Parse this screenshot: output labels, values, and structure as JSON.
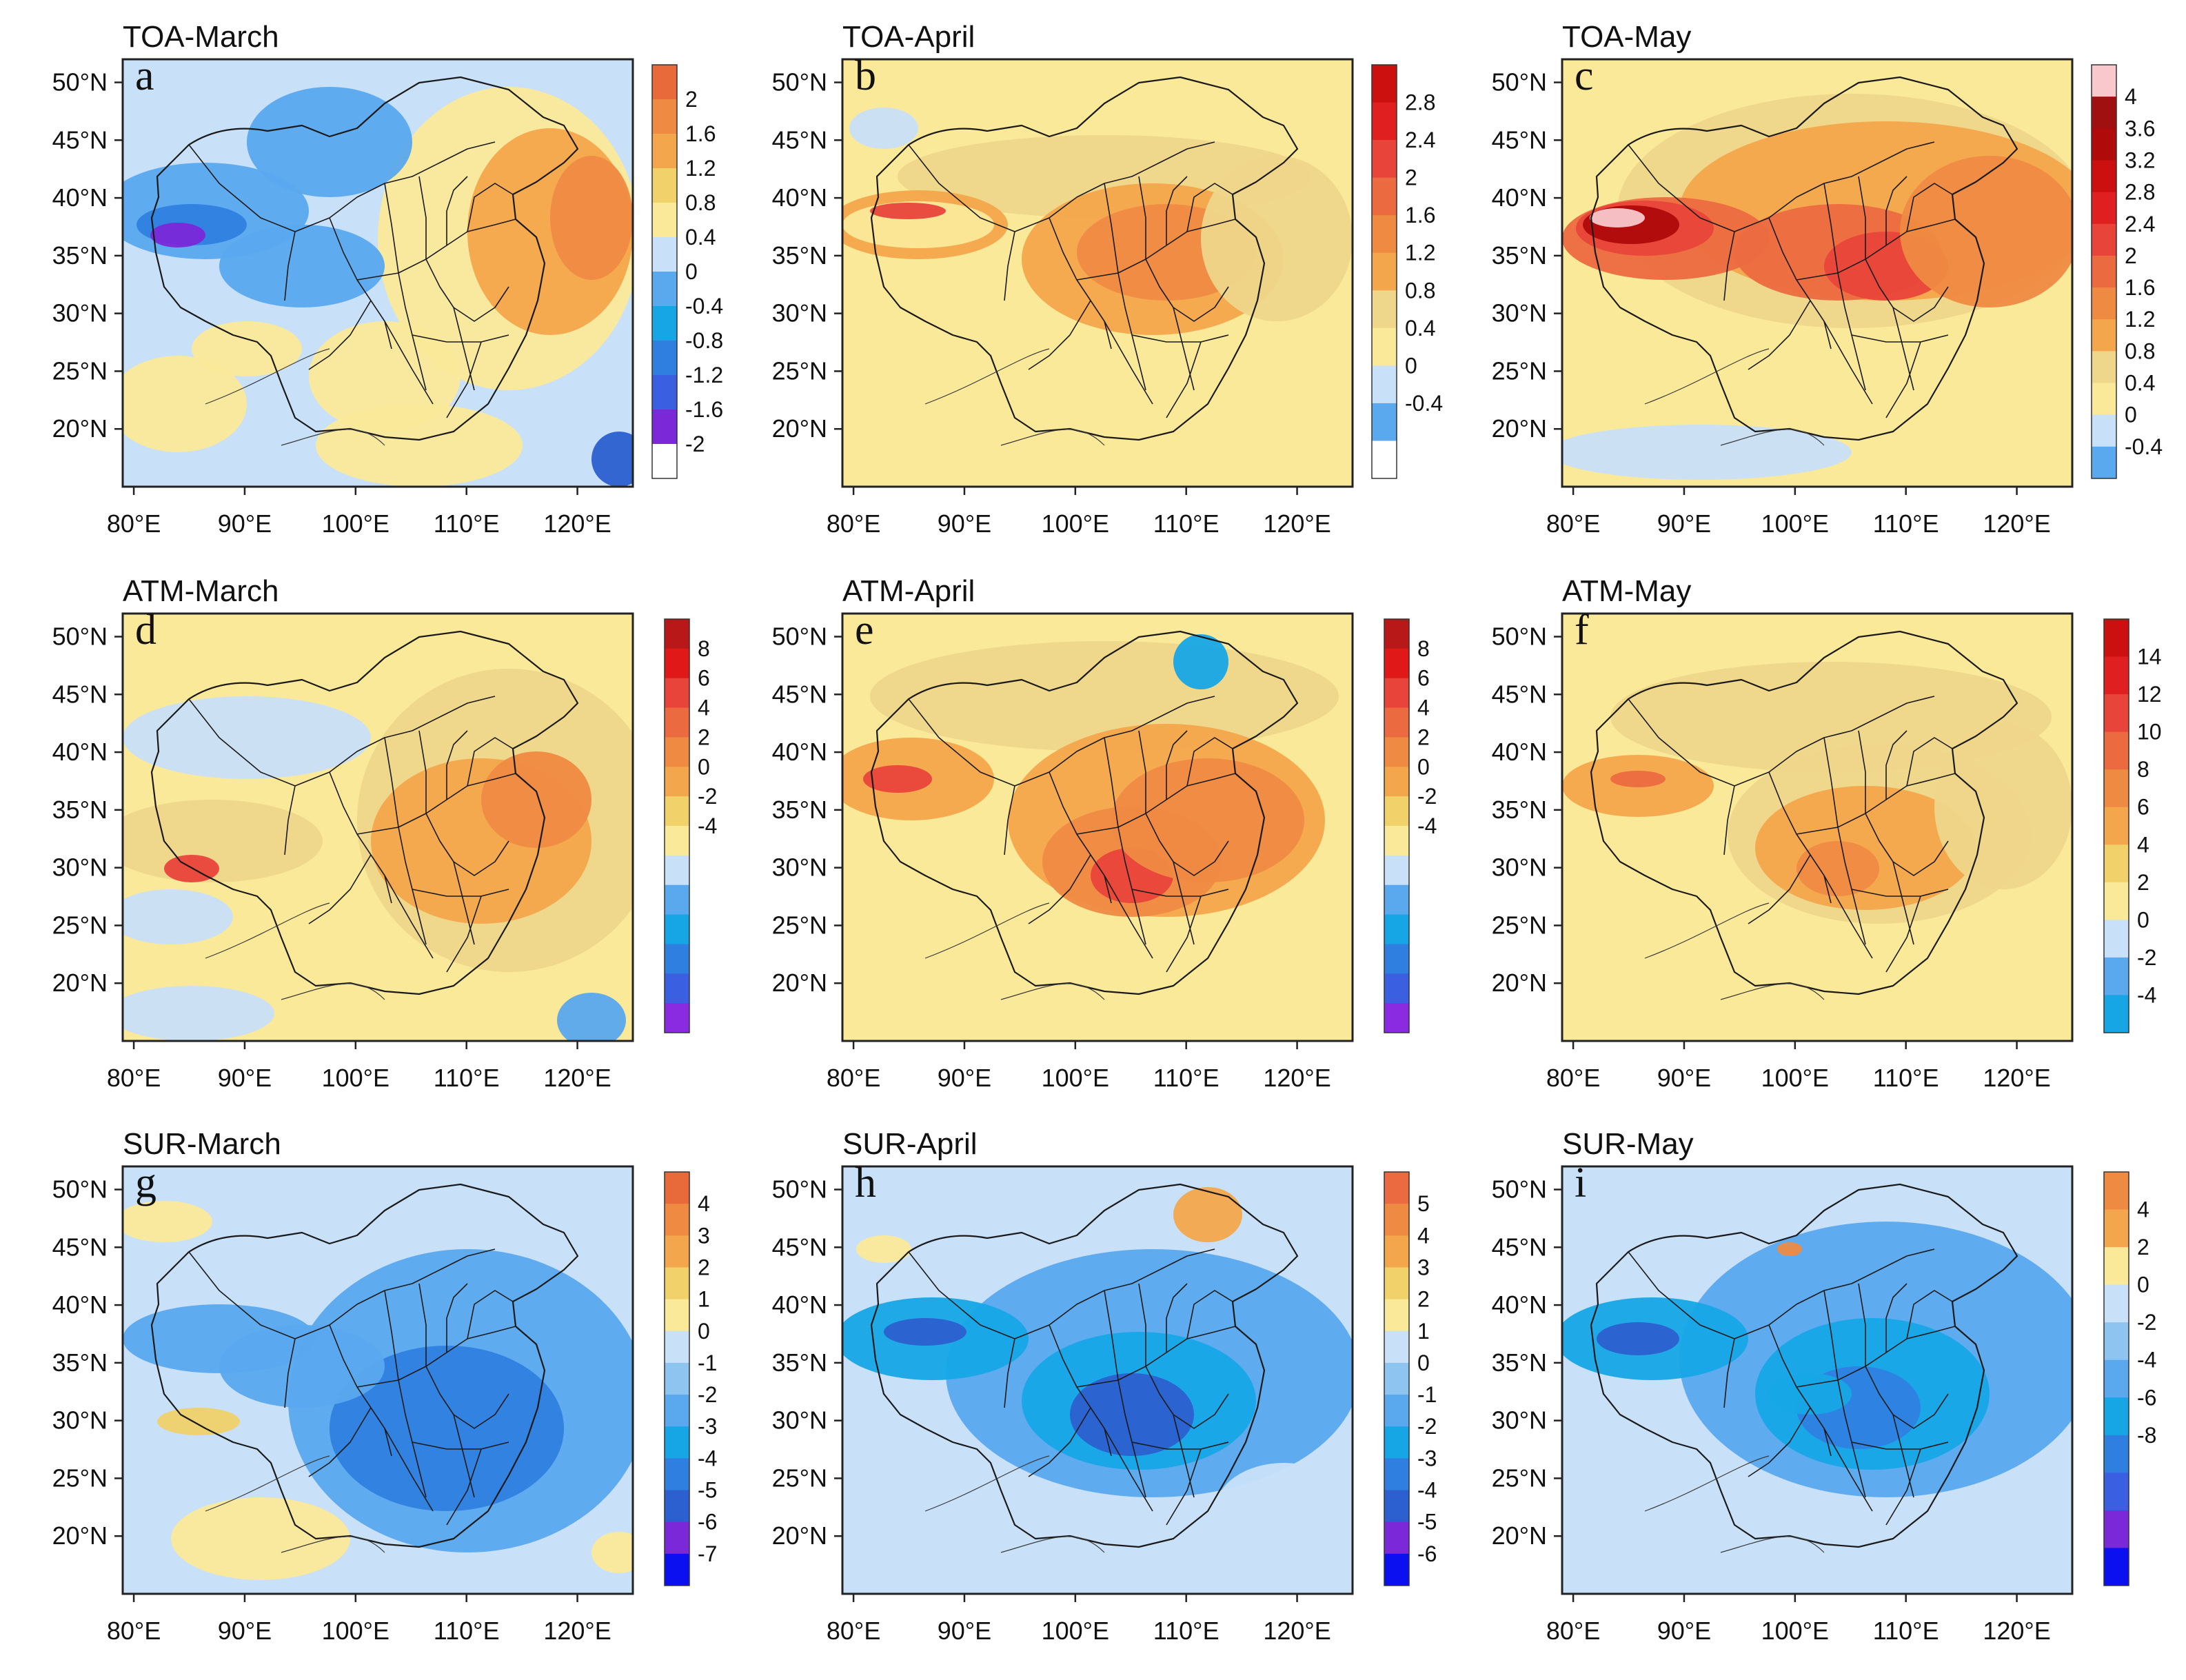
{
  "chart_data": [
    {
      "id": "a",
      "title": "TOA-March",
      "letter": "a",
      "type": "heatmap",
      "scheme": "toa",
      "colorbar": {
        "colors": [
          "#ffffff",
          "#7a28d8",
          "#3a5fe0",
          "#2f7fe0",
          "#16a6e6",
          "#5aa8ee",
          "#c8e0f8",
          "#fbe99a",
          "#f0d16a",
          "#f4a64c",
          "#ef8a42",
          "#e86a3a"
        ],
        "labels": [
          "2",
          "1.6",
          "1.2",
          "0.8",
          "0.4",
          "0",
          "-0.4",
          "-0.8",
          "-1.2",
          "-1.6",
          "-2"
        ]
      }
    },
    {
      "id": "b",
      "title": "TOA-April",
      "letter": "b",
      "type": "heatmap",
      "scheme": "toa_b",
      "colorbar": {
        "colors": [
          "#ffffff",
          "#5aa8ee",
          "#c8e0f8",
          "#fbe99a",
          "#eed68a",
          "#f4a64c",
          "#ef8a42",
          "#ec6a40",
          "#e8443a",
          "#e02020",
          "#cc1010"
        ],
        "labels": [
          "2.8",
          "2.4",
          "2",
          "1.6",
          "1.2",
          "0.8",
          "0.4",
          "0",
          "-0.4"
        ]
      }
    },
    {
      "id": "c",
      "title": "TOA-May",
      "letter": "c",
      "type": "heatmap",
      "scheme": "toa_c",
      "colorbar": {
        "colors": [
          "#5aa8ee",
          "#c8e0f8",
          "#fbe99a",
          "#eed68a",
          "#f4a64c",
          "#ef8a42",
          "#ec6a40",
          "#e8443a",
          "#e02020",
          "#cc1010",
          "#b00a0a",
          "#a01010",
          "#f8c8cc"
        ],
        "labels": [
          "4",
          "3.6",
          "3.2",
          "2.8",
          "2.4",
          "2",
          "1.6",
          "1.2",
          "0.8",
          "0.4",
          "0",
          "-0.4"
        ]
      }
    },
    {
      "id": "d",
      "title": "ATM-March",
      "letter": "d",
      "type": "heatmap",
      "scheme": "atm",
      "colorbar": {
        "colors": [
          "#8a2be2",
          "#3a5fe0",
          "#2f7fe0",
          "#16a6e6",
          "#5aa8ee",
          "#c8e0f8",
          "#fbe99a",
          "#f0d16a",
          "#f4a64c",
          "#ef8a42",
          "#ec6a40",
          "#e8443a",
          "#e01818",
          "#b81818"
        ],
        "labels": [
          "8",
          "6",
          "4",
          "2",
          "0",
          "-2",
          "-4"
        ]
      }
    },
    {
      "id": "e",
      "title": "ATM-April",
      "letter": "e",
      "type": "heatmap",
      "scheme": "atm_e",
      "colorbar": {
        "colors": [
          "#8a2be2",
          "#3a5fe0",
          "#2f7fe0",
          "#16a6e6",
          "#5aa8ee",
          "#c8e0f8",
          "#fbe99a",
          "#f0d16a",
          "#f4a64c",
          "#ef8a42",
          "#ec6a40",
          "#e8443a",
          "#e01818",
          "#b81818"
        ],
        "labels": [
          "8",
          "6",
          "4",
          "2",
          "0",
          "-2",
          "-4"
        ]
      }
    },
    {
      "id": "f",
      "title": "ATM-May",
      "letter": "f",
      "type": "heatmap",
      "scheme": "atm_f",
      "colorbar": {
        "colors": [
          "#16a6e6",
          "#5aa8ee",
          "#c8e0f8",
          "#fbe99a",
          "#f0d16a",
          "#f4a64c",
          "#ef8a42",
          "#ec6a40",
          "#e8443a",
          "#e02020",
          "#cc1010"
        ],
        "labels": [
          "14",
          "12",
          "10",
          "8",
          "6",
          "4",
          "2",
          "0",
          "-2",
          "-4"
        ]
      }
    },
    {
      "id": "g",
      "title": "SUR-March",
      "letter": "g",
      "type": "heatmap",
      "scheme": "sur",
      "colorbar": {
        "colors": [
          "#0a10f0",
          "#7a28d8",
          "#2c5fd0",
          "#2f7fe0",
          "#16a6e6",
          "#5aa8ee",
          "#8ec4f0",
          "#c8e0f8",
          "#fbe99a",
          "#f0d16a",
          "#f4a64c",
          "#ef8a42",
          "#e86a3a"
        ],
        "labels": [
          "4",
          "3",
          "2",
          "1",
          "0",
          "-1",
          "-2",
          "-3",
          "-4",
          "-5",
          "-6",
          "-7"
        ]
      }
    },
    {
      "id": "h",
      "title": "SUR-April",
      "letter": "h",
      "type": "heatmap",
      "scheme": "sur_h",
      "colorbar": {
        "colors": [
          "#0a10f0",
          "#7a28d8",
          "#2c5fd0",
          "#2f7fe0",
          "#16a6e6",
          "#5aa8ee",
          "#8ec4f0",
          "#c8e0f8",
          "#fbe99a",
          "#f0d16a",
          "#f4a64c",
          "#ef8a42",
          "#ec6a40"
        ],
        "labels": [
          "5",
          "4",
          "3",
          "2",
          "1",
          "0",
          "-1",
          "-2",
          "-3",
          "-4",
          "-5",
          "-6"
        ]
      }
    },
    {
      "id": "i",
      "title": "SUR-May",
      "letter": "i",
      "type": "heatmap",
      "scheme": "sur_i",
      "colorbar": {
        "colors": [
          "#0a10f0",
          "#7a28d8",
          "#3a5fe0",
          "#2f7fe0",
          "#16a6e6",
          "#5aa8ee",
          "#8ec4f0",
          "#c8e0f8",
          "#fbe99a",
          "#f4a64c",
          "#ef8a42"
        ],
        "labels": [
          "4",
          "2",
          "0",
          "-2",
          "-4",
          "-6",
          "-8"
        ]
      }
    }
  ],
  "axes": {
    "xticks": [
      "80°E",
      "90°E",
      "100°E",
      "110°E",
      "120°E"
    ],
    "yticks": [
      "50°N",
      "45°N",
      "40°N",
      "35°N",
      "30°N",
      "25°N",
      "20°N"
    ],
    "xlim": [
      79,
      125
    ],
    "ylim": [
      15,
      52
    ]
  }
}
